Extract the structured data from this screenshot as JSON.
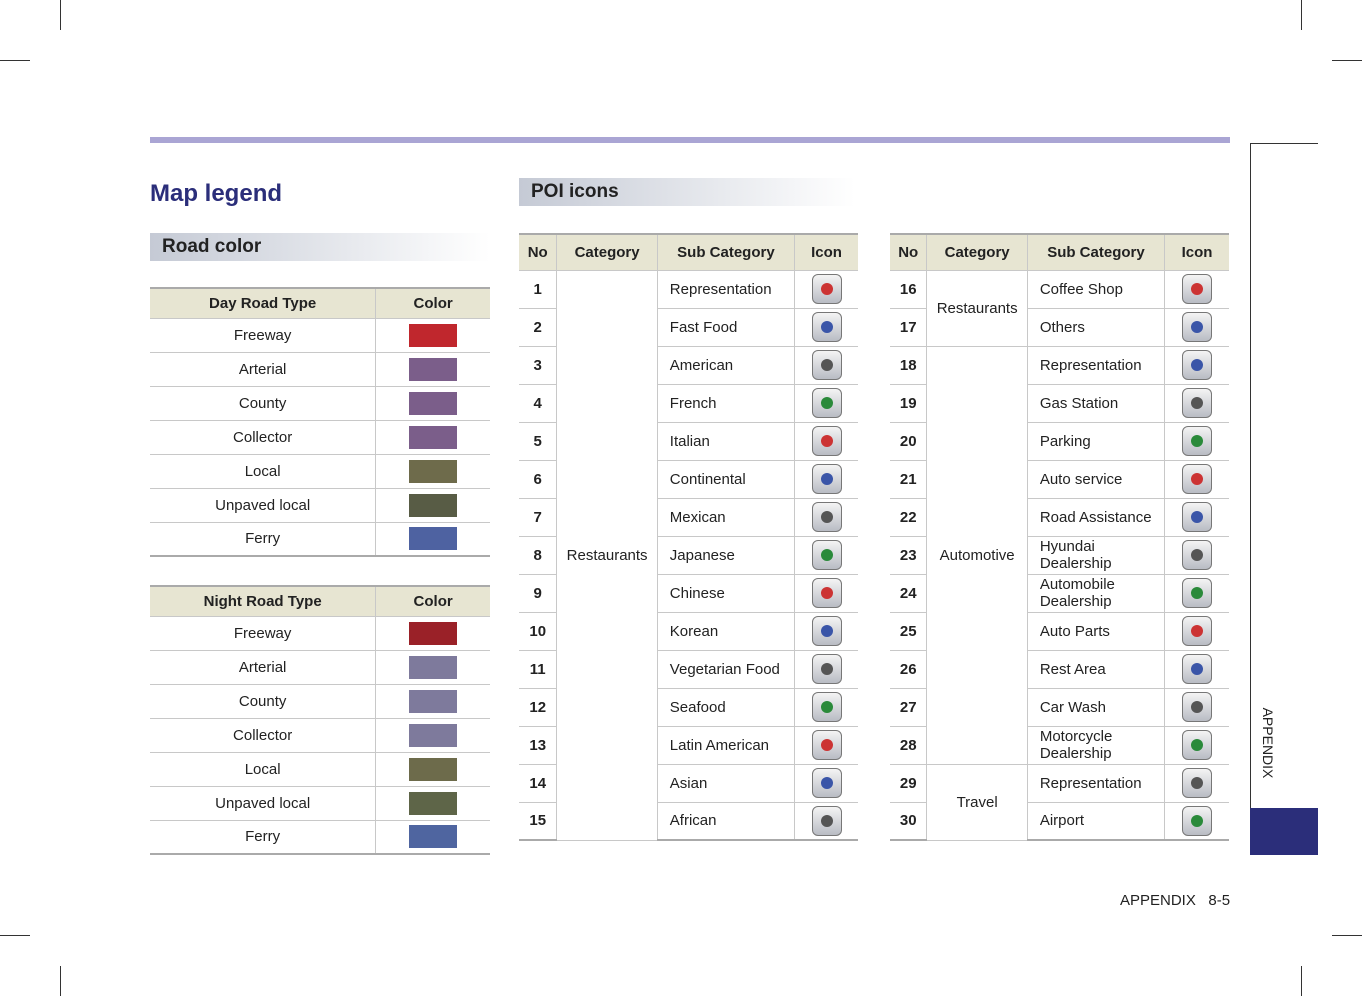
{
  "title": "Map legend",
  "road_color": {
    "heading": "Road color",
    "day": {
      "headers": [
        "Day Road Type",
        "Color"
      ],
      "rows": [
        {
          "name": "Freeway",
          "color": "#c0272d"
        },
        {
          "name": "Arterial",
          "color": "#7b5e8a"
        },
        {
          "name": "County",
          "color": "#7b5e8a"
        },
        {
          "name": "Collector",
          "color": "#7b5e8a"
        },
        {
          "name": "Local",
          "color": "#6e6b4b"
        },
        {
          "name": "Unpaved local",
          "color": "#585c45"
        },
        {
          "name": "Ferry",
          "color": "#4e62a1"
        }
      ]
    },
    "night": {
      "headers": [
        "Night Road Type",
        "Color"
      ],
      "rows": [
        {
          "name": "Freeway",
          "color": "#9a2128"
        },
        {
          "name": "Arterial",
          "color": "#7e7a9c"
        },
        {
          "name": "County",
          "color": "#7e7a9c"
        },
        {
          "name": "Collector",
          "color": "#7e7a9c"
        },
        {
          "name": "Local",
          "color": "#6d6b4b"
        },
        {
          "name": "Unpaved local",
          "color": "#5e6548"
        },
        {
          "name": "Ferry",
          "color": "#4f65a0"
        }
      ]
    }
  },
  "poi": {
    "heading": "POI icons",
    "tables": [
      {
        "headers": [
          "No",
          "Category",
          "Sub Category",
          "Icon"
        ],
        "groups": [
          {
            "category": "Restaurants",
            "items": [
              {
                "no": 1,
                "sub": "Representation"
              },
              {
                "no": 2,
                "sub": "Fast Food"
              },
              {
                "no": 3,
                "sub": "American"
              },
              {
                "no": 4,
                "sub": "French"
              },
              {
                "no": 5,
                "sub": "Italian"
              },
              {
                "no": 6,
                "sub": "Continental"
              },
              {
                "no": 7,
                "sub": "Mexican"
              },
              {
                "no": 8,
                "sub": "Japanese"
              },
              {
                "no": 9,
                "sub": "Chinese"
              },
              {
                "no": 10,
                "sub": "Korean"
              },
              {
                "no": 11,
                "sub": "Vegetarian Food"
              },
              {
                "no": 12,
                "sub": "Seafood"
              },
              {
                "no": 13,
                "sub": "Latin American"
              },
              {
                "no": 14,
                "sub": "Asian"
              },
              {
                "no": 15,
                "sub": "African"
              }
            ]
          }
        ]
      },
      {
        "headers": [
          "No",
          "Category",
          "Sub Category",
          "Icon"
        ],
        "groups": [
          {
            "category": "Restaurants",
            "items": [
              {
                "no": 16,
                "sub": "Coffee Shop"
              },
              {
                "no": 17,
                "sub": "Others"
              }
            ]
          },
          {
            "category": "Automotive",
            "items": [
              {
                "no": 18,
                "sub": "Representation"
              },
              {
                "no": 19,
                "sub": "Gas Station"
              },
              {
                "no": 20,
                "sub": "Parking"
              },
              {
                "no": 21,
                "sub": "Auto service"
              },
              {
                "no": 22,
                "sub": "Road Assistance"
              },
              {
                "no": 23,
                "sub": "Hyundai Dealership"
              },
              {
                "no": 24,
                "sub": "Automobile Dealership"
              },
              {
                "no": 25,
                "sub": "Auto Parts"
              },
              {
                "no": 26,
                "sub": "Rest Area"
              },
              {
                "no": 27,
                "sub": "Car Wash"
              },
              {
                "no": 28,
                "sub": "Motorcycle Dealership"
              }
            ]
          },
          {
            "category": "Travel",
            "items": [
              {
                "no": 29,
                "sub": "Representation"
              },
              {
                "no": 30,
                "sub": "Airport"
              }
            ]
          }
        ]
      }
    ]
  },
  "footer": {
    "section": "APPENDIX",
    "page": "8-5"
  },
  "side_tab": "APPENDIX"
}
